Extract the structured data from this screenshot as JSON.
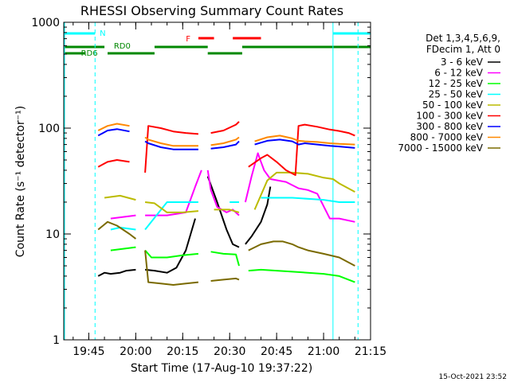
{
  "chart_data": {
    "type": "line",
    "title": "RHESSI Observing Summary Count Rates",
    "xlabel": "Start Time (17-Aug-10 19:37:22)",
    "ylabel": "Count Rate (s⁻¹ detector⁻¹)",
    "yscale": "log",
    "ylim": [
      1,
      1000
    ],
    "xlim_min_after_1940": [
      -3,
      95
    ],
    "x_ticks": [
      "19:45",
      "20:00",
      "20:15",
      "20:30",
      "20:45",
      "21:00",
      "21:15"
    ],
    "y_ticks": [
      "1",
      "10",
      "100",
      "1000"
    ],
    "legend_header": [
      "Det 1,3,4,5,6,9,",
      "FDecim 1, Att 0"
    ],
    "footer": "15-Oct-2021 23:52",
    "flag_labels": {
      "night": "N",
      "saa": "RD0",
      "rd6": "RD6",
      "flare": "F"
    },
    "flag_colors": {
      "night": "#00ffff",
      "saa": "#008800",
      "flare": "#ff0000"
    },
    "night_intervals": [
      [
        -3,
        7
      ],
      [
        83,
        95
      ]
    ],
    "saa_intervals": [
      [
        -3,
        10
      ],
      [
        26,
        43
      ],
      [
        54,
        95
      ]
    ],
    "rd6_intervals": [
      [
        -3,
        4
      ],
      [
        11,
        26
      ],
      [
        43,
        54
      ]
    ],
    "flare_intervals": [
      [
        40,
        45
      ],
      [
        51,
        60
      ]
    ],
    "vertical_markers": [
      {
        "x": 7,
        "style": "dashed"
      },
      {
        "x": 83,
        "style": "solid"
      },
      {
        "x": 91,
        "style": "dashed"
      }
    ],
    "data_gaps": [
      [
        0,
        5
      ],
      [
        21.5,
        22
      ],
      [
        42,
        42.5
      ],
      [
        53.5,
        54
      ]
    ],
    "series": [
      {
        "name": "3 - 6 keV",
        "color": "#000000",
        "x": [
          5,
          8,
          10,
          12,
          15,
          17,
          20,
          23,
          26,
          30,
          33,
          36,
          39,
          42,
          43,
          46,
          49,
          51,
          53,
          55,
          57,
          60,
          62,
          63
        ],
        "y": [
          3.1,
          4,
          4.3,
          4.2,
          4.3,
          4.5,
          4.6,
          4.6,
          4.5,
          4.3,
          4.8,
          7,
          14,
          30,
          35,
          20,
          11,
          8,
          7.5,
          8,
          9.5,
          13,
          19,
          28
        ]
      },
      {
        "name": "6 - 12 keV",
        "color": "#ff00ff",
        "x": [
          5,
          12,
          20,
          23,
          30,
          36,
          39,
          41,
          42,
          43,
          44,
          46,
          49,
          51,
          53,
          55,
          57,
          59,
          60,
          61,
          63,
          68,
          72,
          75,
          78,
          82,
          85,
          90
        ],
        "y": [
          12,
          14,
          15,
          15,
          15,
          16,
          28,
          40,
          46,
          40,
          26,
          18,
          16,
          17,
          15,
          20,
          35,
          58,
          48,
          40,
          33,
          31,
          27,
          26,
          24,
          14,
          14,
          13
        ]
      },
      {
        "name": "12 - 25 keV",
        "color": "#00ff00",
        "x": [
          5,
          12,
          20,
          23,
          25,
          30,
          35,
          40,
          44,
          48,
          52,
          53,
          54,
          56,
          60,
          65,
          70,
          75,
          80,
          85,
          90
        ],
        "y": [
          6,
          7,
          7.5,
          7,
          6,
          6,
          6.3,
          6.5,
          6.8,
          6.5,
          6.4,
          5,
          4.3,
          4.5,
          4.6,
          4.5,
          4.4,
          4.3,
          4.2,
          4,
          3.5
        ]
      },
      {
        "name": "25 - 50 keV",
        "color": "#00ffff",
        "x": [
          5,
          12,
          15,
          20,
          23,
          30,
          40,
          50,
          53,
          54,
          60,
          70,
          80,
          85,
          90
        ],
        "y": [
          10,
          11,
          11.5,
          11,
          11,
          20,
          20,
          20,
          20,
          22,
          22,
          22,
          21,
          20,
          20
        ]
      },
      {
        "name": "50 - 100 keV",
        "color": "#bbbb00",
        "x": [
          5,
          10,
          15,
          20,
          23,
          26,
          30,
          35,
          40,
          45,
          50,
          53,
          54,
          58,
          62,
          65,
          70,
          75,
          80,
          83,
          85,
          90
        ],
        "y": [
          19,
          22,
          23,
          21,
          20,
          19.5,
          16,
          16,
          16.5,
          17,
          17,
          16,
          15,
          17,
          32,
          38,
          38,
          37,
          34,
          33,
          30,
          25
        ]
      },
      {
        "name": "100 - 300 keV",
        "color": "#ff0000",
        "x": [
          5,
          8,
          11,
          14,
          18,
          22,
          23,
          24,
          28,
          32,
          36,
          40,
          44,
          48,
          52,
          53,
          54,
          56,
          60,
          62,
          65,
          68,
          71,
          72,
          74,
          78,
          82,
          85,
          88,
          90
        ],
        "y": [
          38,
          43,
          48,
          50,
          48,
          42,
          38,
          105,
          100,
          93,
          90,
          88,
          90,
          95,
          108,
          115,
          38,
          43,
          52,
          56,
          48,
          40,
          36,
          105,
          108,
          103,
          97,
          94,
          90,
          85
        ]
      },
      {
        "name": "300 - 800 keV",
        "color": "#0000ff",
        "x": [
          5,
          8,
          11,
          14,
          18,
          22,
          23,
          24,
          28,
          32,
          36,
          40,
          44,
          48,
          52,
          53,
          54,
          58,
          62,
          66,
          70,
          72,
          74,
          78,
          82,
          85,
          90
        ],
        "y": [
          75,
          85,
          95,
          98,
          93,
          80,
          75,
          72,
          66,
          63,
          63,
          63,
          64,
          66,
          70,
          75,
          64,
          70,
          76,
          78,
          75,
          70,
          72,
          70,
          68,
          67,
          65
        ]
      },
      {
        "name": "800 - 7000 keV",
        "color": "#ff8800",
        "x": [
          5,
          8,
          11,
          14,
          18,
          22,
          23,
          24,
          28,
          32,
          36,
          40,
          44,
          48,
          52,
          53,
          54,
          58,
          62,
          66,
          70,
          72,
          74,
          78,
          82,
          85,
          90
        ],
        "y": [
          80,
          95,
          105,
          110,
          105,
          88,
          82,
          78,
          72,
          68,
          68,
          68,
          69,
          72,
          78,
          82,
          68,
          75,
          82,
          85,
          80,
          76,
          75,
          74,
          72,
          71,
          70
        ]
      },
      {
        "name": "7000 - 15000 keV",
        "color": "#7a6a00",
        "x": [
          5,
          8,
          11,
          14,
          18,
          20,
          22,
          23,
          24,
          28,
          32,
          36,
          40,
          44,
          48,
          52,
          53,
          54,
          56,
          60,
          64,
          67,
          70,
          72,
          75,
          80,
          85,
          90
        ],
        "y": [
          9,
          11,
          13,
          12,
          10,
          9,
          8,
          7,
          3.5,
          3.4,
          3.3,
          3.4,
          3.5,
          3.6,
          3.7,
          3.8,
          3.7,
          6,
          7,
          8,
          8.5,
          8.5,
          8,
          7.5,
          7,
          6.5,
          6,
          5
        ]
      }
    ]
  }
}
